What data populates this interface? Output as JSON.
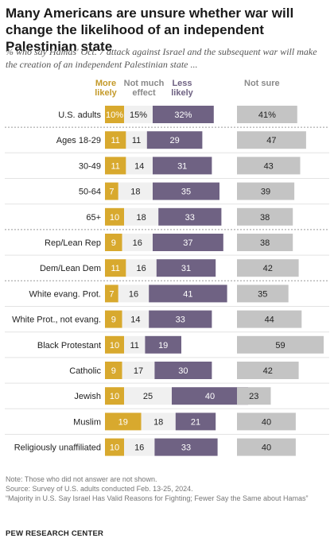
{
  "title": "Many Americans are unsure whether war will change the likelihood of an independent Palestinian state",
  "subtitle": "% who say Hamas' Oct. 7 attack against Israel and the subsequent war will make the creation of an independent Palestinian state ...",
  "colors": {
    "more_likely": "#d8a92e",
    "no_effect": "#f0f0f0",
    "less_likely": "#6f6283",
    "not_sure": "#c4c4c4",
    "more_likely_text": "#c49a2a",
    "no_effect_text": "#8a8a8a",
    "less_likely_text": "#6f6283",
    "not_sure_text": "#8a8a8a"
  },
  "chart_data": {
    "type": "bar",
    "stacked": true,
    "categories": [
      "U.S. adults",
      "Ages 18-29",
      "30-49",
      "50-64",
      "65+",
      "Rep/Lean Rep",
      "Dem/Lean Dem",
      "White evang. Prot.",
      "White Prot., not evang.",
      "Black Protestant",
      "Catholic",
      "Jewish",
      "Muslim",
      "Religiously unaffiliated"
    ],
    "series": [
      {
        "name": "More likely",
        "values": [
          10,
          11,
          11,
          7,
          10,
          9,
          11,
          7,
          9,
          10,
          9,
          10,
          19,
          10
        ],
        "labels": [
          "10%",
          "11",
          "11",
          "7",
          "10",
          "9",
          "11",
          "7",
          "9",
          "10",
          "9",
          "10",
          "19",
          "10"
        ]
      },
      {
        "name": "Not much effect",
        "values": [
          15,
          11,
          14,
          18,
          18,
          16,
          16,
          16,
          14,
          11,
          17,
          25,
          18,
          16
        ],
        "labels": [
          "15%",
          "11",
          "14",
          "18",
          "18",
          "16",
          "16",
          "16",
          "14",
          "11",
          "17",
          "25",
          "18",
          "16"
        ]
      },
      {
        "name": "Less likely",
        "values": [
          32,
          29,
          31,
          35,
          33,
          37,
          31,
          41,
          33,
          19,
          30,
          40,
          21,
          33
        ],
        "labels": [
          "32%",
          "29",
          "31",
          "35",
          "33",
          "37",
          "31",
          "41",
          "33",
          "19",
          "30",
          "40",
          "21",
          "33"
        ]
      },
      {
        "name": "Not sure",
        "values": [
          41,
          47,
          43,
          39,
          38,
          38,
          42,
          35,
          44,
          59,
          42,
          23,
          40,
          40
        ],
        "labels": [
          "41%",
          "47",
          "43",
          "39",
          "38",
          "38",
          "42",
          "35",
          "44",
          "59",
          "42",
          "23",
          "40",
          "40"
        ]
      }
    ],
    "group_breaks_after": [
      0,
      4,
      6
    ],
    "legend_placement": "top",
    "xlabel": "",
    "ylabel": "",
    "grid": false
  },
  "notes": [
    "Note: Those who did not answer are not shown.",
    "Source: Survey of U.S. adults conducted Feb. 13-25, 2024.",
    "“Majority in U.S. Say Israel Has Valid Reasons for Fighting; Fewer Say the Same about Hamas”"
  ],
  "footer": "PEW RESEARCH CENTER"
}
